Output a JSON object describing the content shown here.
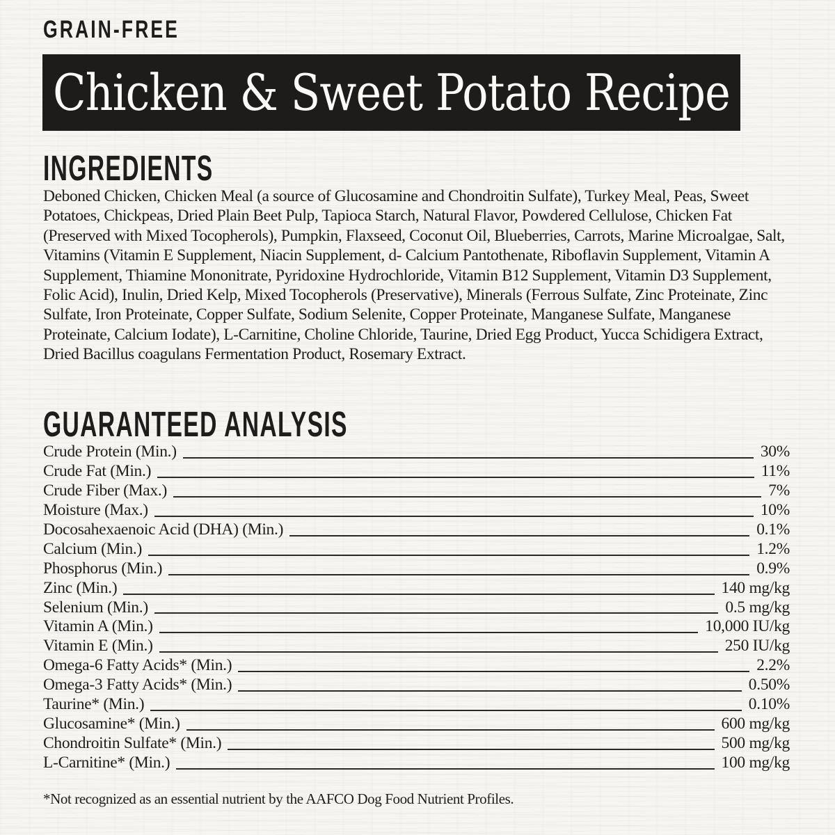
{
  "page": {
    "badge": "GRAIN-FREE",
    "title": "Chicken & Sweet Potato Recipe"
  },
  "ingredients": {
    "heading": "INGREDIENTS",
    "text": "Deboned Chicken, Chicken Meal (a source of Glucosamine and Chondroitin Sulfate), Turkey Meal, Peas, Sweet Potatoes, Chickpeas, Dried Plain Beet Pulp, Tapioca Starch, Natural Flavor, Powdered Cellulose, Chicken Fat (Preserved with Mixed Tocopherols), Pumpkin, Flaxseed, Coconut Oil, Blueberries, Carrots, Marine Microalgae, Salt, Vitamins (Vitamin E Supplement, Niacin Supplement, d- Calcium Pantothenate, Riboflavin Supplement, Vitamin A Supplement, Thiamine Mononitrate, Pyridoxine Hydrochloride, Vitamin B12 Supplement, Vitamin D3 Supplement, Folic Acid), Inulin, Dried Kelp, Mixed Tocopherols (Preservative), Minerals (Ferrous Sulfate, Zinc Proteinate, Zinc Sulfate, Iron Proteinate, Copper Sulfate, Sodium Selenite, Copper Proteinate, Manganese Sulfate, Manganese Proteinate, Calcium Iodate), L-Carnitine, Choline Chloride, Taurine, Dried Egg Product, Yucca Schidigera Extract, Dried Bacillus coagulans Fermentation Product, Rosemary Extract."
  },
  "analysis": {
    "heading": "GUARANTEED ANALYSIS",
    "rows": [
      {
        "name": "Crude Protein (Min.)",
        "value": "30%"
      },
      {
        "name": "Crude Fat (Min.)",
        "value": "11%"
      },
      {
        "name": "Crude Fiber (Max.)",
        "value": "7%"
      },
      {
        "name": "Moisture (Max.)",
        "value": "10%"
      },
      {
        "name": "Docosahexaenoic Acid (DHA) (Min.)",
        "value": "0.1%"
      },
      {
        "name": "Calcium (Min.)",
        "value": "1.2%"
      },
      {
        "name": "Phosphorus (Min.)",
        "value": "0.9%"
      },
      {
        "name": "Zinc (Min.)",
        "value": "140 mg/kg"
      },
      {
        "name": "Selenium (Min.)",
        "value": "0.5 mg/kg"
      },
      {
        "name": "Vitamin A (Min.)",
        "value": "10,000 IU/kg"
      },
      {
        "name": "Vitamin E (Min.)",
        "value": "250 IU/kg"
      },
      {
        "name": "Omega-6 Fatty Acids* (Min.)",
        "value": "2.2%"
      },
      {
        "name": "Omega-3 Fatty Acids* (Min.)",
        "value": "0.50%"
      },
      {
        "name": "Taurine* (Min.)",
        "value": "0.10%"
      },
      {
        "name": "Glucosamine* (Min.)",
        "value": "600 mg/kg"
      },
      {
        "name": "Chondroitin Sulfate* (Min.)",
        "value": "500 mg/kg"
      },
      {
        "name": "L-Carnitine* (Min.)",
        "value": "100 mg/kg"
      }
    ],
    "footnote": "*Not recognized as an essential nutrient by the AAFCO Dog Food Nutrient Profiles."
  },
  "colors": {
    "background": "#f6f5f2",
    "text": "#1e1d1b",
    "banner_bg": "#1d1c1a",
    "banner_text": "#fbfaf7",
    "rule": "#2a2927"
  }
}
